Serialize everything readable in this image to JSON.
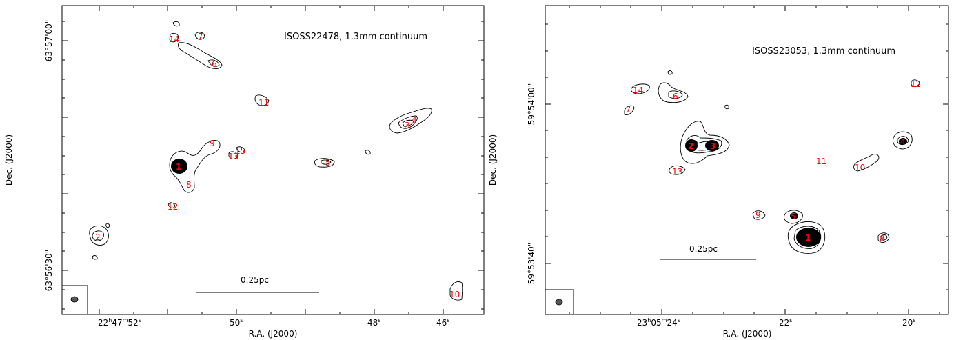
{
  "chart_data": [
    {
      "type": "scatter",
      "title": "ISOSS22478, 1.3mm continuum",
      "xlabel": "R.A. (J2000)",
      "ylabel": "Dec. (J2000)",
      "x_tick_labels": [
        "22h47m52s",
        "50s",
        "48s",
        "46s"
      ],
      "x_tick_parts": [
        {
          "main": "22",
          "sup1": "h",
          "mid": "47",
          "sup2": "m",
          "end": "52",
          "sup3": "s"
        },
        {
          "main": "50",
          "sup3": "s"
        },
        {
          "main": "48",
          "sup3": "s"
        },
        {
          "main": "46",
          "sup3": "s"
        }
      ],
      "y_tick_labels": [
        "63°57'00\"",
        "63°56'30\""
      ],
      "scale_bar": "0.25pc",
      "sources": [
        {
          "label": "1"
        },
        {
          "label": "2"
        },
        {
          "label": "3"
        },
        {
          "label": "4"
        },
        {
          "label": "5"
        },
        {
          "label": "6"
        },
        {
          "label": "7"
        },
        {
          "label": "8"
        },
        {
          "label": "9"
        },
        {
          "label": "10"
        },
        {
          "label": "11"
        },
        {
          "label": "12"
        },
        {
          "label": "13"
        },
        {
          "label": "14"
        },
        {
          "label": "15"
        }
      ]
    },
    {
      "type": "scatter",
      "title": "ISOSS23053, 1.3mm continuum",
      "xlabel": "R.A. (J2000)",
      "ylabel": "Dec. (J2000)",
      "x_tick_labels": [
        "23h05m24s",
        "22s",
        "20s"
      ],
      "y_tick_labels": [
        "59°54'00\"",
        "59°53'40\""
      ],
      "scale_bar": "0.25pc",
      "sources": [
        {
          "label": "1"
        },
        {
          "label": "2"
        },
        {
          "label": "3"
        },
        {
          "label": "4"
        },
        {
          "label": "5"
        },
        {
          "label": "6"
        },
        {
          "label": "7"
        },
        {
          "label": "8"
        },
        {
          "label": "9"
        },
        {
          "label": "10"
        },
        {
          "label": "11"
        },
        {
          "label": "12"
        },
        {
          "label": "13"
        },
        {
          "label": "14"
        }
      ]
    }
  ],
  "colors": {
    "label": "#ff0000",
    "contour": "#000000"
  }
}
